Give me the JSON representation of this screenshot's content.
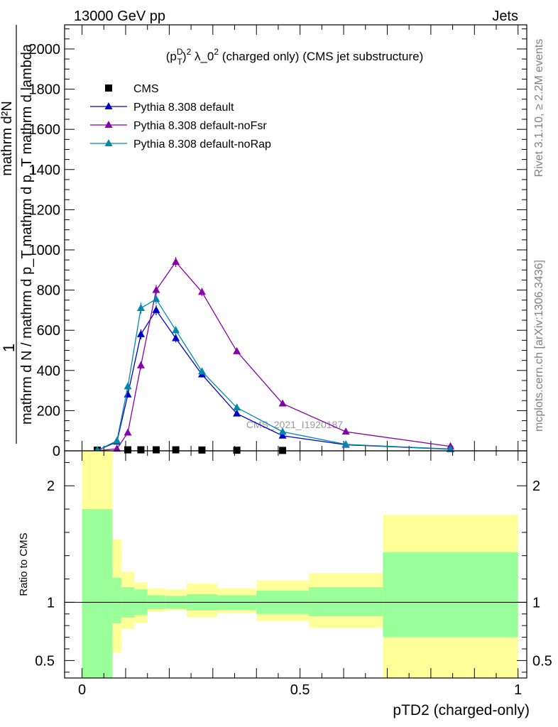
{
  "header": {
    "energy": "13000 GeV pp",
    "category": "Jets"
  },
  "side_labels": {
    "rivet": "Rivet 3.1.10, ≥ 2.2M events",
    "mcplots": "mcplots.cern.ch [arXiv:1306.3436]"
  },
  "watermark": "CMS_2021_I1920187",
  "chart_data": [
    {
      "type": "line",
      "title": "(p_T^D)^2 λ_0^2 (charged only) (CMS jet substructure)",
      "title_parts": {
        "a": "(p",
        "sup1": "D",
        "sub1": "T",
        "b": ")",
        "sup2": "2",
        "c": " λ_0",
        "sup3": "2",
        "d": " (charged only) (CMS jet substructure)"
      },
      "ylabel": "1 / mathrm d N / mathrm d p_T mathrm d^2N / mathrm d p_T mathrm d lambda",
      "ylabel_parts": {
        "one": "1",
        "num": "mathrm d²N",
        "den": "mathrm d N / mathrm d p_T mathrm d p_T mathrm d lambda"
      },
      "xlim": [
        -0.04,
        1.02
      ],
      "ylim": [
        0,
        2120
      ],
      "yticks": [
        0,
        200,
        400,
        600,
        800,
        1000,
        1200,
        1400,
        1600,
        1800,
        2000
      ],
      "legend_position": "top-left",
      "series": [
        {
          "name": "CMS",
          "color": "#000000",
          "marker": "square",
          "x": [
            0.035,
            0.105,
            0.135,
            0.17,
            0.215,
            0.275,
            0.355,
            0.46
          ],
          "y": [
            3,
            5,
            5,
            5,
            5,
            4,
            3,
            2
          ]
        },
        {
          "name": "Pythia 8.308 default",
          "color": "#0000cc",
          "marker": "triangle",
          "x": [
            0.035,
            0.08,
            0.105,
            0.135,
            0.17,
            0.215,
            0.275,
            0.355,
            0.46,
            0.605,
            0.845
          ],
          "y": [
            2,
            45,
            280,
            580,
            700,
            560,
            380,
            185,
            75,
            30,
            8
          ],
          "err": [
            1,
            5,
            15,
            25,
            25,
            20,
            15,
            10,
            5,
            3,
            2
          ]
        },
        {
          "name": "Pythia 8.308 default-noFsr",
          "color": "#8800aa",
          "marker": "triangle",
          "x": [
            0.035,
            0.08,
            0.105,
            0.135,
            0.17,
            0.215,
            0.275,
            0.355,
            0.46,
            0.605,
            0.845
          ],
          "y": [
            1,
            10,
            90,
            425,
            800,
            940,
            790,
            495,
            235,
            95,
            22
          ],
          "err": [
            1,
            3,
            8,
            20,
            25,
            25,
            20,
            12,
            8,
            5,
            2
          ]
        },
        {
          "name": "Pythia 8.308 default-noRap",
          "color": "#0088aa",
          "marker": "triangle",
          "x": [
            0.035,
            0.08,
            0.105,
            0.135,
            0.17,
            0.215,
            0.275,
            0.355,
            0.46,
            0.605,
            0.845
          ],
          "y": [
            2,
            50,
            320,
            710,
            755,
            600,
            395,
            215,
            95,
            32,
            9
          ],
          "err": [
            1,
            5,
            18,
            28,
            25,
            20,
            15,
            10,
            5,
            3,
            2
          ]
        }
      ]
    },
    {
      "type": "area",
      "ylabel": "Ratio to CMS",
      "xlabel": "pTD2 (charged-only)",
      "xlim": [
        -0.04,
        1.02
      ],
      "ylim": [
        0.35,
        2.3
      ],
      "yticks_labeled": [
        0.5,
        1,
        2
      ],
      "xticks_labeled": [
        0,
        0.5,
        1
      ],
      "reference_line": 1,
      "bins": [
        {
          "lo": 0.0,
          "hi": 0.07,
          "inner": [
            0.35,
            1.8
          ],
          "outer": [
            0.35,
            2.3
          ]
        },
        {
          "lo": 0.07,
          "hi": 0.09,
          "inner": [
            0.82,
            1.21
          ],
          "outer": [
            0.57,
            1.54
          ]
        },
        {
          "lo": 0.09,
          "hi": 0.12,
          "inner": [
            0.87,
            1.13
          ],
          "outer": [
            0.77,
            1.26
          ]
        },
        {
          "lo": 0.12,
          "hi": 0.15,
          "inner": [
            0.89,
            1.11
          ],
          "outer": [
            0.82,
            1.17
          ]
        },
        {
          "lo": 0.15,
          "hi": 0.19,
          "inner": [
            0.94,
            1.06
          ],
          "outer": [
            0.92,
            1.12
          ]
        },
        {
          "lo": 0.19,
          "hi": 0.24,
          "inner": [
            0.945,
            1.055
          ],
          "outer": [
            0.93,
            1.11
          ]
        },
        {
          "lo": 0.24,
          "hi": 0.31,
          "inner": [
            0.93,
            1.07
          ],
          "outer": [
            0.87,
            1.16
          ]
        },
        {
          "lo": 0.31,
          "hi": 0.4,
          "inner": [
            0.935,
            1.06
          ],
          "outer": [
            0.91,
            1.12
          ]
        },
        {
          "lo": 0.4,
          "hi": 0.52,
          "inner": [
            0.9,
            1.1
          ],
          "outer": [
            0.84,
            1.19
          ]
        },
        {
          "lo": 0.52,
          "hi": 0.69,
          "inner": [
            0.88,
            1.13
          ],
          "outer": [
            0.78,
            1.25
          ]
        },
        {
          "lo": 0.69,
          "hi": 1.0,
          "inner": [
            0.7,
            1.43
          ],
          "outer": [
            0.35,
            1.75
          ]
        }
      ],
      "colors": {
        "inner": "#99ff99",
        "outer": "#ffff99"
      }
    }
  ]
}
